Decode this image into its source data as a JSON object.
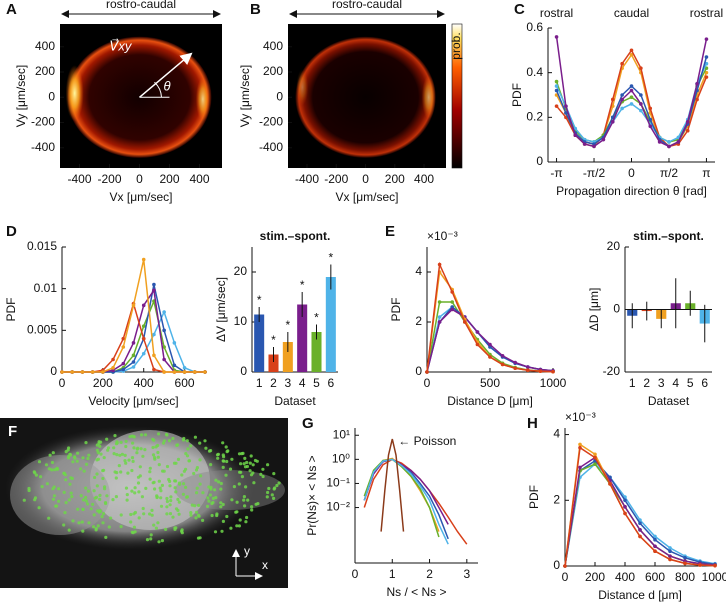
{
  "chart_data": [
    {
      "type": "heatmap",
      "panel": "A",
      "title": "rostro-caudal",
      "xlabel": "Vx [μm/sec]",
      "ylabel": "Vy [μm/sec]",
      "xlim": [
        -530,
        550
      ],
      "ylim": [
        -560,
        580
      ],
      "xticks": [
        -400,
        -200,
        0,
        200,
        400
      ],
      "yticks": [
        -400,
        -200,
        0,
        200,
        400
      ],
      "annotations": [
        "V⃗xy",
        "θ"
      ]
    },
    {
      "type": "heatmap",
      "panel": "B",
      "title": "rostro-caudal",
      "xlabel": "Vx [μm/sec]",
      "ylabel": "Vy [μm/sec]",
      "xlim": [
        -530,
        550
      ],
      "ylim": [
        -560,
        580
      ],
      "xticks": [
        -400,
        -200,
        0,
        200,
        400
      ],
      "yticks": [
        -400,
        -200,
        0,
        200,
        400
      ],
      "colorbar_label": "prob."
    },
    {
      "type": "line",
      "panel": "C",
      "xlabel": "Propagation direction θ [rad]",
      "ylabel": "PDF",
      "markers": true,
      "top_labels": [
        "rostral",
        "caudal",
        "rostral"
      ],
      "xlim": [
        -3.5,
        3.5
      ],
      "ylim": [
        0,
        0.6
      ],
      "xticks": [
        {
          "value": -3.1416,
          "label": "-π"
        },
        {
          "value": -1.5708,
          "label": "-π/2"
        },
        0,
        {
          "value": 1.5708,
          "label": "π/2"
        },
        {
          "value": 3.1416,
          "label": "π"
        }
      ],
      "yticks": [
        0,
        0.2,
        0.4,
        0.6
      ],
      "x": [
        -3.1416,
        -2.7489,
        -2.3562,
        -1.9635,
        -1.5708,
        -1.1781,
        -0.7854,
        -0.3927,
        0,
        0.3927,
        0.7854,
        1.1781,
        1.5708,
        1.9635,
        2.3562,
        2.7489,
        3.1416
      ],
      "series": [
        {
          "color": "#f0a020",
          "values": [
            0.3,
            0.22,
            0.12,
            0.08,
            0.07,
            0.12,
            0.25,
            0.42,
            0.48,
            0.4,
            0.22,
            0.1,
            0.07,
            0.09,
            0.16,
            0.3,
            0.4
          ]
        },
        {
          "color": "#d8401a",
          "values": [
            0.25,
            0.2,
            0.12,
            0.09,
            0.08,
            0.12,
            0.28,
            0.44,
            0.5,
            0.42,
            0.24,
            0.11,
            0.07,
            0.08,
            0.14,
            0.28,
            0.38
          ]
        },
        {
          "color": "#6ab02a",
          "values": [
            0.36,
            0.24,
            0.14,
            0.1,
            0.09,
            0.12,
            0.2,
            0.27,
            0.29,
            0.26,
            0.18,
            0.11,
            0.09,
            0.1,
            0.18,
            0.34,
            0.42
          ]
        },
        {
          "color": "#4fb3e8",
          "values": [
            0.34,
            0.25,
            0.15,
            0.1,
            0.09,
            0.11,
            0.18,
            0.24,
            0.26,
            0.23,
            0.17,
            0.11,
            0.09,
            0.11,
            0.19,
            0.35,
            0.44
          ]
        },
        {
          "color": "#2a57b0",
          "values": [
            0.32,
            0.22,
            0.13,
            0.09,
            0.08,
            0.11,
            0.2,
            0.3,
            0.34,
            0.3,
            0.19,
            0.1,
            0.07,
            0.09,
            0.17,
            0.32,
            0.47
          ]
        },
        {
          "color": "#7a1e8c",
          "values": [
            0.56,
            0.25,
            0.12,
            0.08,
            0.07,
            0.1,
            0.18,
            0.28,
            0.32,
            0.26,
            0.16,
            0.09,
            0.07,
            0.09,
            0.18,
            0.35,
            0.55
          ]
        }
      ]
    },
    {
      "type": "line",
      "panel": "D",
      "xlabel": "Velocity [μm/sec]",
      "ylabel": "PDF",
      "markers": true,
      "xlim": [
        0,
        700
      ],
      "ylim": [
        0,
        0.015
      ],
      "xticks": [
        0,
        200,
        400,
        600
      ],
      "yticks": [
        0,
        0.005,
        0.01,
        0.015
      ],
      "x": [
        0,
        50,
        100,
        150,
        200,
        250,
        300,
        350,
        400,
        450,
        500,
        550,
        600,
        650,
        700
      ],
      "series": [
        {
          "color": "#4fb3e8",
          "values": [
            0,
            0,
            0,
            0,
            0,
            0,
            0.0001,
            0.0006,
            0.0022,
            0.0045,
            0.0072,
            0.0035,
            0.0005,
            0,
            0
          ]
        },
        {
          "color": "#6ab02a",
          "values": [
            0,
            0,
            0,
            0,
            0,
            0,
            0.0005,
            0.002,
            0.0055,
            0.0085,
            0.003,
            0.0002,
            0,
            0,
            0
          ]
        },
        {
          "color": "#2a57b0",
          "values": [
            0,
            0,
            0,
            0,
            0,
            0,
            0.0003,
            0.0012,
            0.004,
            0.0105,
            0.005,
            0.0008,
            0,
            0,
            0
          ]
        },
        {
          "color": "#7a1e8c",
          "values": [
            0,
            0,
            0,
            0,
            0,
            0.0002,
            0.001,
            0.0035,
            0.008,
            0.0098,
            0.0015,
            0,
            0,
            0,
            0
          ]
        },
        {
          "color": "#d8401a",
          "values": [
            0,
            0,
            0,
            0,
            0.0002,
            0.0015,
            0.004,
            0.0082,
            0.004,
            0.0003,
            0,
            0,
            0,
            0,
            0
          ]
        },
        {
          "color": "#f0a020",
          "values": [
            0,
            0,
            0,
            0,
            0,
            0.0005,
            0.003,
            0.008,
            0.0135,
            0.002,
            0,
            0,
            0,
            0,
            0
          ]
        }
      ]
    },
    {
      "type": "bar",
      "title": "stim.–spont.",
      "xlabel": "Dataset",
      "ylabel": "ΔV [μm/sec]",
      "ylim": [
        0,
        25
      ],
      "yticks": [
        0,
        10,
        20
      ],
      "categories": [
        "1",
        "2",
        "3",
        "4",
        "5",
        "6"
      ],
      "values": [
        11.5,
        3.5,
        6,
        13.5,
        8,
        19
      ],
      "errors": [
        1.5,
        1.5,
        2,
        2.5,
        1.5,
        2.5
      ],
      "colors": [
        "#2a57b0",
        "#d8401a",
        "#f0a020",
        "#7a1e8c",
        "#6ab02a",
        "#4fb3e8"
      ],
      "marker_labels": [
        "*",
        "*",
        "*",
        "*",
        "*",
        "*"
      ]
    },
    {
      "type": "line",
      "panel": "E",
      "xlabel": "Distance D [μm]",
      "ylabel": "PDF",
      "y_scale_label": "×10⁻³",
      "markers": true,
      "xlim": [
        0,
        1000
      ],
      "ylim": [
        0,
        5
      ],
      "xticks": [
        0,
        500,
        1000
      ],
      "yticks": [
        0,
        2,
        4
      ],
      "x": [
        0,
        100,
        200,
        300,
        400,
        500,
        600,
        700,
        800,
        900,
        1000
      ],
      "series": [
        {
          "color": "#4fb3e8",
          "values": [
            0,
            2.2,
            2.6,
            2.2,
            1.6,
            1,
            0.6,
            0.35,
            0.2,
            0.1,
            0.05
          ]
        },
        {
          "color": "#6ab02a",
          "values": [
            0,
            2.8,
            2.8,
            2,
            1.3,
            0.7,
            0.35,
            0.18,
            0.08,
            0.04,
            0.02
          ]
        },
        {
          "color": "#2a57b0",
          "values": [
            0,
            2,
            2.6,
            2.2,
            1.6,
            1,
            0.6,
            0.35,
            0.2,
            0.1,
            0.05
          ]
        },
        {
          "color": "#7a1e8c",
          "values": [
            0,
            2,
            2.5,
            2.2,
            1.6,
            1.1,
            0.65,
            0.38,
            0.2,
            0.1,
            0.05
          ]
        },
        {
          "color": "#f0a020",
          "values": [
            0,
            4,
            3.3,
            2.1,
            1.2,
            0.6,
            0.3,
            0.15,
            0.07,
            0.03,
            0.01
          ]
        },
        {
          "color": "#d8401a",
          "values": [
            0,
            4.3,
            3.2,
            2,
            1.1,
            0.6,
            0.3,
            0.15,
            0.07,
            0.03,
            0.01
          ]
        }
      ]
    },
    {
      "type": "bar",
      "title": "stim.–spont.",
      "xlabel": "Dataset",
      "ylabel": "ΔD [μm]",
      "ylim": [
        -20,
        20
      ],
      "yticks": [
        -20,
        0,
        20
      ],
      "categories": [
        "1",
        "2",
        "3",
        "4",
        "5",
        "6"
      ],
      "values": [
        -2,
        -0.5,
        -3,
        2,
        2,
        -4.5
      ],
      "errors": [
        4,
        3,
        3,
        8,
        4,
        6
      ],
      "colors": [
        "#2a57b0",
        "#d8401a",
        "#f0a020",
        "#7a1e8c",
        "#6ab02a",
        "#4fb3e8"
      ]
    },
    {
      "type": "image",
      "panel": "F",
      "axis_labels": [
        "y",
        "x"
      ]
    },
    {
      "type": "line",
      "panel": "G",
      "xlabel": "Ns / < Ns >",
      "ylabel": "Pr(Ns)× < Ns >",
      "log_y": true,
      "annotations": [
        "← Poisson"
      ],
      "xlim": [
        0,
        3.3
      ],
      "ylim": [
        5e-05,
        20
      ],
      "xticks": [
        0,
        1,
        2,
        3
      ],
      "yticks": [
        {
          "value": 0.01,
          "label": "10⁻²"
        },
        {
          "value": 0.1,
          "label": "10⁻¹"
        },
        {
          "value": 1,
          "label": "10⁰"
        },
        {
          "value": 10,
          "label": "10¹"
        }
      ],
      "x": [
        0,
        0.25,
        0.5,
        0.75,
        1,
        1.25,
        1.5,
        1.75,
        2,
        2.25,
        2.5,
        2.75,
        3
      ],
      "series": [
        {
          "color": "#2a57b0",
          "values": [
            null,
            0.02,
            0.3,
            0.8,
            1,
            0.6,
            0.3,
            0.1,
            0.03,
            0.005,
            0.0005,
            null,
            null
          ]
        },
        {
          "color": "#d8401a",
          "values": [
            null,
            0.01,
            0.15,
            0.6,
            1,
            0.7,
            0.35,
            0.15,
            0.05,
            0.015,
            0.004,
            0.001,
            0.0003
          ]
        },
        {
          "color": "#f0a020",
          "values": [
            null,
            0.02,
            0.3,
            0.9,
            1.1,
            0.5,
            0.2,
            0.05,
            0.01,
            0.001,
            null,
            null,
            null
          ]
        },
        {
          "color": "#7a1e8c",
          "values": [
            null,
            0.02,
            0.25,
            0.8,
            1,
            0.6,
            0.35,
            0.15,
            0.05,
            0.01,
            0.002,
            null,
            null
          ]
        },
        {
          "color": "#6ab02a",
          "values": [
            null,
            0.03,
            0.35,
            0.9,
            1,
            0.5,
            0.2,
            0.06,
            0.01,
            0.0006,
            null,
            null,
            null
          ]
        },
        {
          "color": "#4fb3e8",
          "values": [
            null,
            0.02,
            0.3,
            0.85,
            1,
            0.55,
            0.25,
            0.08,
            0.02,
            0.002,
            0.0003,
            null,
            null
          ]
        },
        {
          "color": "#8b3a1a",
          "x": [
            0.7,
            0.8,
            0.9,
            1,
            1.1,
            1.2,
            1.3
          ],
          "values": [
            0.001,
            0.05,
            1.5,
            7,
            1.5,
            0.05,
            0.001
          ]
        }
      ]
    },
    {
      "type": "line",
      "panel": "H",
      "xlabel": "Distance d [μm]",
      "ylabel": "PDF",
      "y_scale_label": "×10⁻³",
      "markers": true,
      "xlim": [
        0,
        1000
      ],
      "ylim": [
        0,
        4.2
      ],
      "xticks": [
        0,
        200,
        400,
        600,
        800,
        1000
      ],
      "yticks": [
        0,
        2,
        4
      ],
      "x": [
        0,
        100,
        200,
        300,
        400,
        500,
        600,
        700,
        800,
        900,
        1000
      ],
      "series": [
        {
          "color": "#4fb3e8",
          "values": [
            0,
            2.7,
            3.1,
            2.7,
            2.1,
            1.4,
            0.9,
            0.55,
            0.3,
            0.15,
            0.07
          ]
        },
        {
          "color": "#2a57b0",
          "values": [
            0,
            2.9,
            3.2,
            2.7,
            2,
            1.3,
            0.8,
            0.45,
            0.25,
            0.12,
            0.05
          ]
        },
        {
          "color": "#6ab02a",
          "values": [
            0,
            2.9,
            3.1,
            2.5,
            1.8,
            1.1,
            0.6,
            0.3,
            0.15,
            0.07,
            0.03
          ]
        },
        {
          "color": "#7a1e8c",
          "values": [
            0,
            3,
            3.3,
            2.6,
            1.8,
            1.1,
            0.6,
            0.3,
            0.15,
            0.07,
            0.03
          ]
        },
        {
          "color": "#f0a020",
          "values": [
            0,
            3.7,
            3.4,
            2.5,
            1.6,
            0.9,
            0.45,
            0.2,
            0.08,
            0.03,
            0.01
          ]
        },
        {
          "color": "#d8401a",
          "values": [
            0,
            3.6,
            3.3,
            2.5,
            1.6,
            0.9,
            0.45,
            0.2,
            0.08,
            0.03,
            0.01
          ]
        }
      ]
    }
  ]
}
